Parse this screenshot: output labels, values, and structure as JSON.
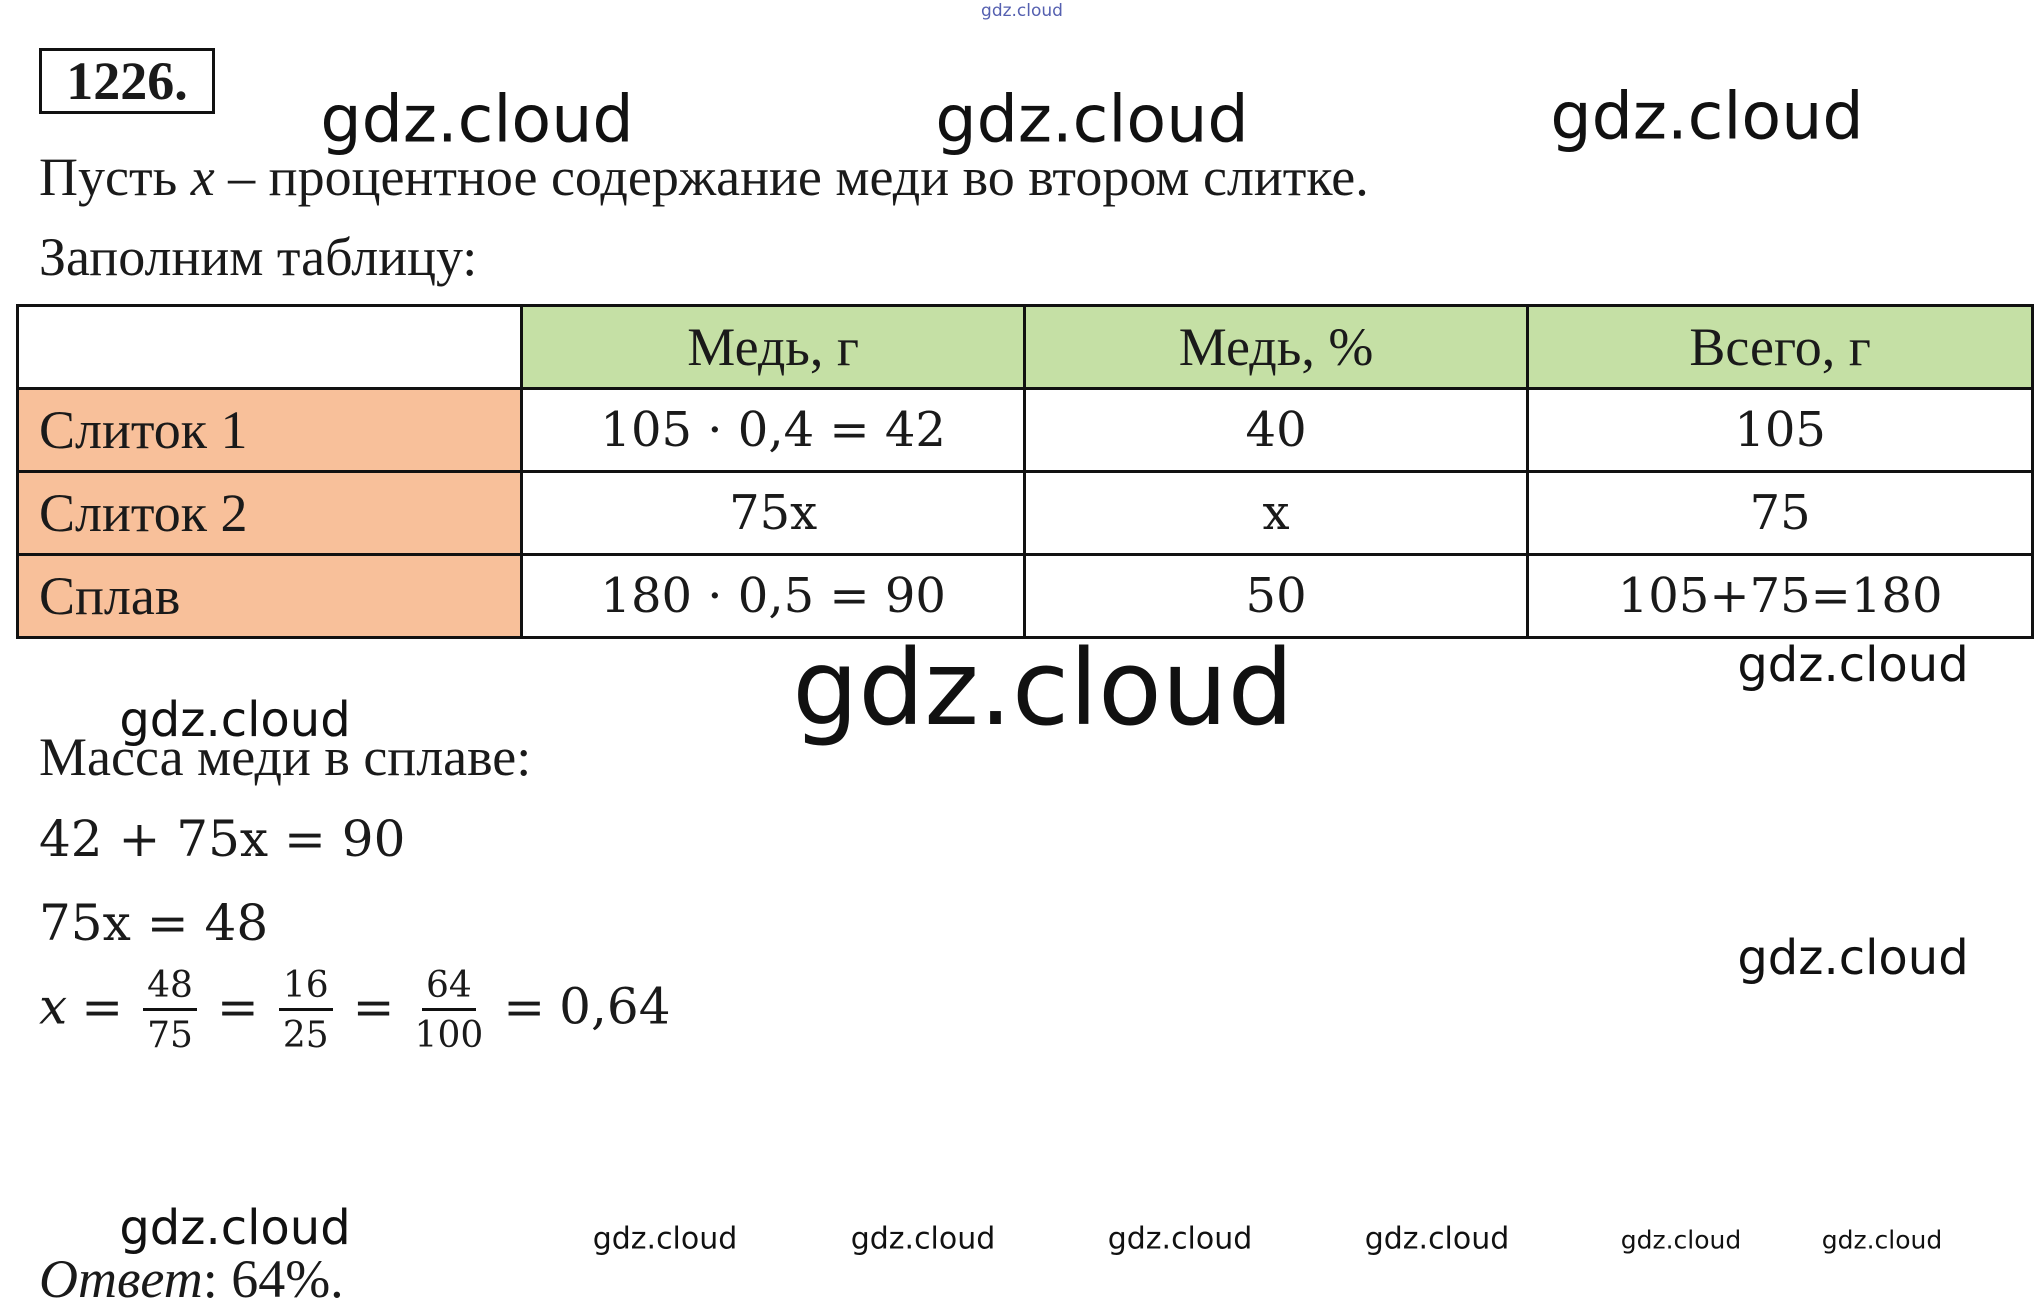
{
  "watermark_top": "gdz.cloud",
  "problem_number": "1226.",
  "intro": {
    "before": "Пусть ",
    "var": "x",
    "after": " – процентное содержание меди во втором слитке."
  },
  "table_caption": "Заполним таблицу:",
  "table": {
    "header": [
      "Медь, г",
      "Медь, %",
      "Всего, г"
    ],
    "rows": [
      {
        "label": "Слиток 1",
        "cells": [
          "105 · 0,4 = 42",
          "40",
          "105"
        ]
      },
      {
        "label": "Слиток 2",
        "cells": [
          "75x",
          "x",
          "75"
        ]
      },
      {
        "label": "Сплав",
        "cells": [
          "180 · 0,5 = 90",
          "50",
          "105+75=180"
        ]
      }
    ]
  },
  "solution_title": "Масса меди в сплаве:",
  "equations": [
    "42 + 75x = 90",
    "75x = 48"
  ],
  "final": {
    "lhs": "x",
    "equals": "=",
    "fractions": [
      {
        "num": "48",
        "den": "75"
      },
      {
        "num": "16",
        "den": "25"
      },
      {
        "num": "64",
        "den": "100"
      }
    ],
    "result": "0,64"
  },
  "answer": {
    "label": "Ответ",
    "text": ": 64%."
  },
  "watermarks": [
    "gdz.cloud",
    "gdz.cloud",
    "gdz.cloud",
    "gdz.cloud",
    "gdz.cloud",
    "gdz.cloud",
    "gdz.cloud",
    "gdz.cloud",
    "gdz.cloud",
    "gdz.cloud",
    "gdz.cloud",
    "gdz.cloud",
    "gdz.cloud",
    "gdz.cloud"
  ]
}
